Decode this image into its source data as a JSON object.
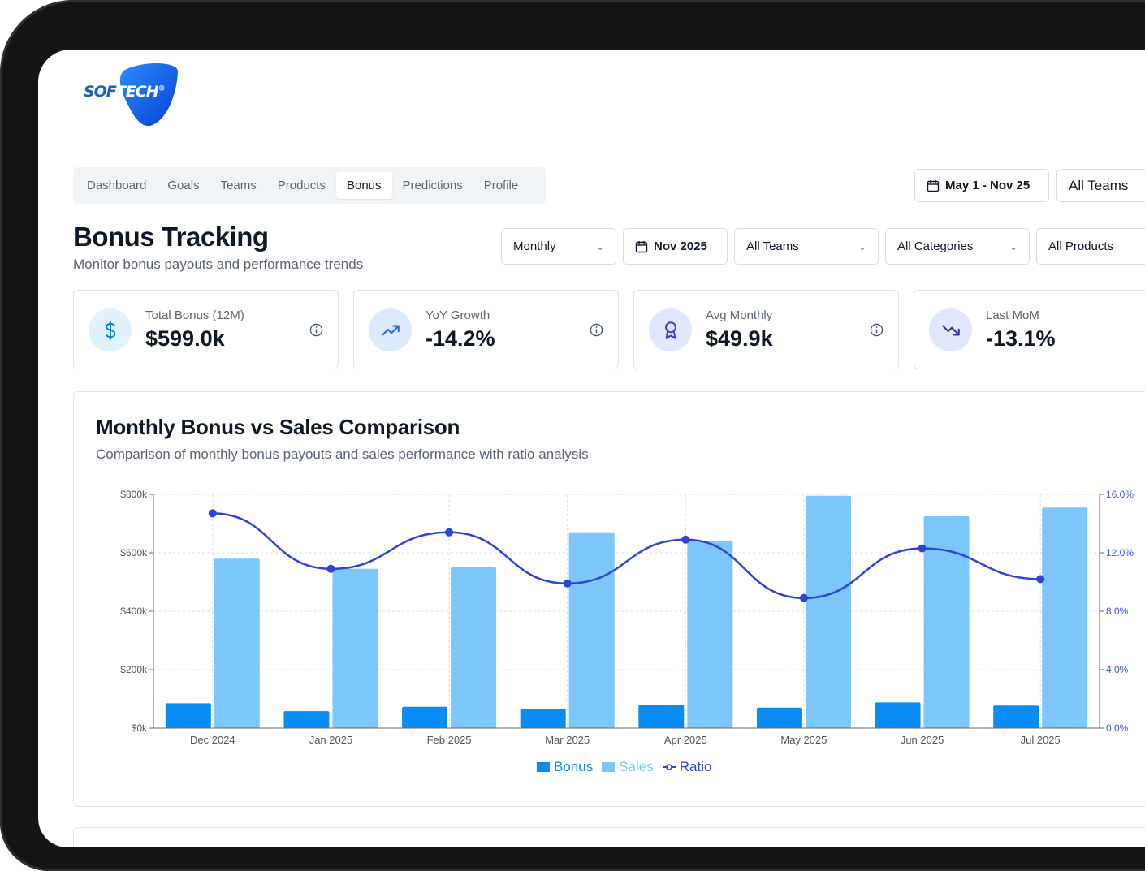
{
  "brand": {
    "logo_text_a": "SOF",
    "logo_text_b": "TECH",
    "registered": "®"
  },
  "nav": {
    "tabs": [
      {
        "label": "Dashboard"
      },
      {
        "label": "Goals"
      },
      {
        "label": "Teams"
      },
      {
        "label": "Products"
      },
      {
        "label": "Bonus",
        "active": true
      },
      {
        "label": "Predictions"
      },
      {
        "label": "Profile"
      }
    ],
    "date_range": "May 1 - Nov 25",
    "teams": "All Teams"
  },
  "page": {
    "title": "Bonus Tracking",
    "subtitle": "Monitor bonus payouts and performance trends"
  },
  "filters": {
    "period": "Monthly",
    "month": "Nov 2025",
    "teams": "All Teams",
    "categories": "All Categories",
    "products": "All Products"
  },
  "cards": [
    {
      "label": "Total Bonus (12M)",
      "value": "$599.0k",
      "icon": "dollar-icon",
      "color": "#e0f2fe",
      "icon_color": "#0284c7"
    },
    {
      "label": "YoY Growth",
      "value": "-14.2%",
      "icon": "trending-up-icon",
      "color": "#dbeafe",
      "icon_color": "#2563eb"
    },
    {
      "label": "Avg Monthly",
      "value": "$49.9k",
      "icon": "award-icon",
      "color": "#e0e7ff",
      "icon_color": "#4338ca"
    },
    {
      "label": "Last MoM",
      "value": "-13.1%",
      "icon": "trending-down-icon",
      "color": "#e0e7ff",
      "icon_color": "#3730a3"
    }
  ],
  "chart": {
    "title": "Monthly Bonus vs Sales Comparison",
    "subtitle": "Comparison of monthly bonus payouts and sales performance with ratio analysis"
  },
  "chart_data": {
    "type": "bar",
    "categories": [
      "Dec 2024",
      "Jan 2025",
      "Feb 2025",
      "Mar 2025",
      "Apr 2025",
      "May 2025",
      "Jun 2025",
      "Jul 2025"
    ],
    "series": [
      {
        "name": "Bonus",
        "type": "bar",
        "axis": "left",
        "color": "#0a8cf5",
        "values": [
          85,
          58,
          73,
          65,
          80,
          70,
          88,
          77
        ]
      },
      {
        "name": "Sales",
        "type": "bar",
        "axis": "left",
        "color": "#7cc6fb",
        "values": [
          580,
          545,
          550,
          670,
          640,
          795,
          725,
          755
        ]
      },
      {
        "name": "Ratio",
        "type": "line",
        "axis": "right",
        "color": "#2a45d8",
        "values": [
          14.7,
          10.9,
          13.4,
          9.9,
          12.9,
          8.9,
          12.3,
          10.2
        ]
      }
    ],
    "y_left": {
      "ticks": [
        "$0k",
        "$200k",
        "$400k",
        "$600k",
        "$800k"
      ],
      "range": [
        0,
        800
      ]
    },
    "y_right": {
      "ticks": [
        "0.0%",
        "4.0%",
        "8.0%",
        "12.0%",
        "16.0%"
      ],
      "range": [
        0,
        16
      ]
    },
    "grid": true,
    "legend": "bottom-center"
  }
}
